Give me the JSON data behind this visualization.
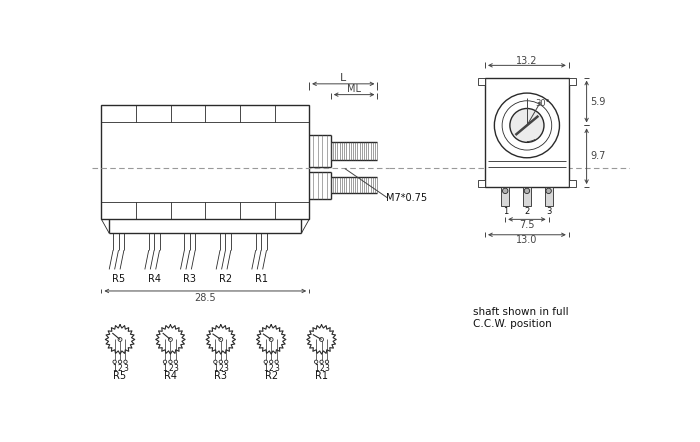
{
  "bg_color": "#ffffff",
  "line_color": "#2a2a2a",
  "dim_color": "#444444",
  "text_color": "#111111",
  "dashed_color": "#999999",
  "dims": {
    "L_label": "L",
    "ML_label": "ML",
    "width_label": "28.5",
    "top_width": "13.2",
    "inner_top": "5.9",
    "inner_bot": "9.7",
    "pin_width": "7.5",
    "bot_width": "13.0",
    "thread": "M7*0.75",
    "angle": "30°"
  },
  "schematic_labels": [
    "R5",
    "R4",
    "R3",
    "R2",
    "R1"
  ],
  "wiper_angles_deg": [
    220,
    220,
    215,
    215,
    210
  ],
  "ccw_text": [
    "shaft shown in full",
    "C.C.W. position"
  ]
}
